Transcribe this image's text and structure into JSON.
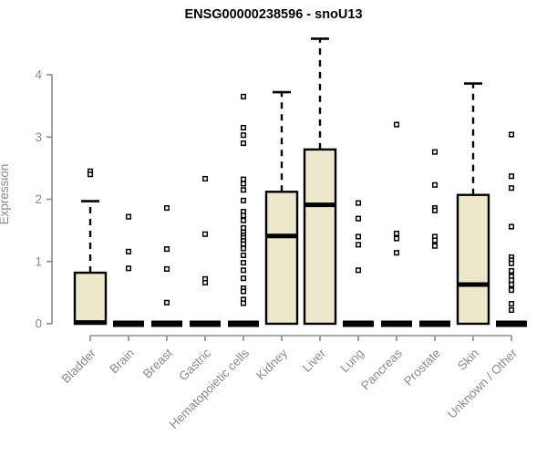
{
  "chart_data": {
    "type": "boxplot",
    "title": "ENSG00000238596 - snoU13",
    "xlabel": "",
    "ylabel": "Expression",
    "ylim": [
      0,
      4.6
    ],
    "yticks": [
      0,
      1,
      2,
      3,
      4
    ],
    "grid": false,
    "legend": "none",
    "categories": [
      "Bladder",
      "Brain",
      "Breast",
      "Gastric",
      "Hematopoietic cells",
      "Kidney",
      "Liver",
      "Lung",
      "Pancreas",
      "Prostate",
      "Skin",
      "Unknown / Other"
    ],
    "boxes": [
      {
        "category": "Bladder",
        "whisker_low": 0,
        "q1": 0,
        "median": 0.02,
        "q3": 0.82,
        "whisker_high": 1.97,
        "outliers": [
          2.45,
          2.4
        ]
      },
      {
        "category": "Brain",
        "whisker_low": 0,
        "q1": 0,
        "median": 0,
        "q3": 0,
        "whisker_high": 0,
        "outliers": [
          1.72,
          1.16,
          0.89
        ]
      },
      {
        "category": "Breast",
        "whisker_low": 0,
        "q1": 0,
        "median": 0,
        "q3": 0,
        "whisker_high": 0,
        "outliers": [
          1.86,
          1.2,
          0.88,
          0.34
        ]
      },
      {
        "category": "Gastric",
        "whisker_low": 0,
        "q1": 0,
        "median": 0,
        "q3": 0,
        "whisker_high": 0,
        "outliers": [
          2.33,
          1.44,
          0.72,
          0.66
        ]
      },
      {
        "category": "Hematopoietic cells",
        "whisker_low": 0,
        "q1": 0,
        "median": 0,
        "q3": 0,
        "whisker_high": 0,
        "outliers": [
          3.65,
          3.15,
          3.03,
          2.9,
          2.32,
          2.25,
          2.15,
          1.98,
          1.8,
          1.74,
          1.66,
          1.54,
          1.47,
          1.42,
          1.38,
          1.33,
          1.28,
          1.21,
          1.1,
          0.98,
          0.86,
          0.73,
          0.57,
          0.52,
          0.39,
          0.33
        ]
      },
      {
        "category": "Kidney",
        "whisker_low": 0,
        "q1": 0,
        "median": 1.41,
        "q3": 2.12,
        "whisker_high": 3.72,
        "outliers": []
      },
      {
        "category": "Liver",
        "whisker_low": 0,
        "q1": 0,
        "median": 1.91,
        "q3": 2.8,
        "whisker_high": 4.58,
        "outliers": []
      },
      {
        "category": "Lung",
        "whisker_low": 0,
        "q1": 0,
        "median": 0,
        "q3": 0,
        "whisker_high": 0,
        "outliers": [
          1.94,
          1.69,
          1.4,
          1.27,
          0.86
        ]
      },
      {
        "category": "Pancreas",
        "whisker_low": 0,
        "q1": 0,
        "median": 0,
        "q3": 0,
        "whisker_high": 0,
        "outliers": [
          3.2,
          1.45,
          1.37,
          1.14
        ]
      },
      {
        "category": "Prostate",
        "whisker_low": 0,
        "q1": 0,
        "median": 0,
        "q3": 0,
        "whisker_high": 0,
        "outliers": [
          2.76,
          2.23,
          1.86,
          1.82,
          1.4,
          1.34,
          1.25
        ]
      },
      {
        "category": "Skin",
        "whisker_low": 0,
        "q1": 0,
        "median": 0.63,
        "q3": 2.07,
        "whisker_high": 3.86,
        "outliers": []
      },
      {
        "category": "Unknown / Other",
        "whisker_low": 0,
        "q1": 0,
        "median": 0,
        "q3": 0,
        "whisker_high": 0,
        "outliers": [
          3.04,
          2.37,
          2.18,
          1.56,
          1.07,
          1.02,
          0.97,
          0.85,
          0.76,
          0.7,
          0.63,
          0.54,
          0.32,
          0.22
        ]
      }
    ],
    "style": {
      "box_fill": "#EDE7CB",
      "box_stroke": "#000000",
      "median_color": "#000000",
      "axis_color": "#8A8A8A",
      "whisker_style": "dashed",
      "outlier_marker": "open-square",
      "x_label_rotation_deg": 45
    }
  }
}
